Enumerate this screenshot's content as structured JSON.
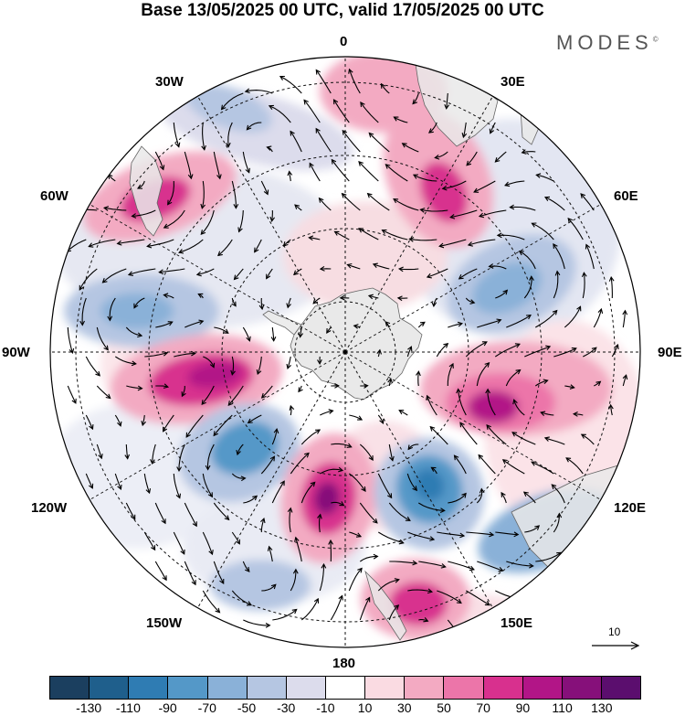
{
  "title": "Base 13/05/2025 00 UTC, valid 17/05/2025 00 UTC",
  "brand": "MODES",
  "brand_mark": "©",
  "longitude_labels": {
    "lon_0": "0",
    "lon_30e": "30E",
    "lon_60e": "60E",
    "lon_90e": "90E",
    "lon_120e": "120E",
    "lon_150e": "150E",
    "lon_180": "180",
    "lon_150w": "150W",
    "lon_120w": "120W",
    "lon_90w": "90W",
    "lon_60w": "60W",
    "lon_30w": "30W"
  },
  "reference_vector": {
    "label": "10"
  },
  "colorbar": {
    "tick_labels": [
      "-130",
      "-110",
      "-90",
      "-70",
      "-50",
      "-30",
      "-10",
      "10",
      "30",
      "50",
      "70",
      "90",
      "110",
      "130"
    ],
    "colors": [
      "#1b3f5f",
      "#1f5f8c",
      "#2f7cb3",
      "#5498c8",
      "#8ab1d8",
      "#b5c6e2",
      "#dcdcec",
      "#ffffff",
      "#fadbe2",
      "#f3aac2",
      "#ec75a9",
      "#d8308e",
      "#b21587",
      "#86107a",
      "#5b0e6e"
    ]
  },
  "map": {
    "projection": "south-polar-stereographic",
    "antarctica_color": "#e9e9e9",
    "land_color": "#e9e9e9",
    "anomalies": [
      {
        "name": "anom-60w-positive",
        "value": 75
      },
      {
        "name": "anom-30w-negative",
        "value": -45
      },
      {
        "name": "anom-0-positive",
        "value": 45
      },
      {
        "name": "anom-30e-positive",
        "value": 80
      },
      {
        "name": "anom-60e-negative",
        "value": -70
      },
      {
        "name": "anom-70w-negative",
        "value": -70
      },
      {
        "name": "anom-90w-positive",
        "value": 105
      },
      {
        "name": "anom-100e-positive",
        "value": 100
      },
      {
        "name": "anom-120w-negative",
        "value": -80
      },
      {
        "name": "anom-165w-positive",
        "value": 115
      },
      {
        "name": "anom-140e-negative",
        "value": -110
      },
      {
        "name": "anom-165e-positive",
        "value": 75
      },
      {
        "name": "anom-150w-negative",
        "value": -40
      },
      {
        "name": "anom-130e-negative",
        "value": -55
      }
    ]
  }
}
